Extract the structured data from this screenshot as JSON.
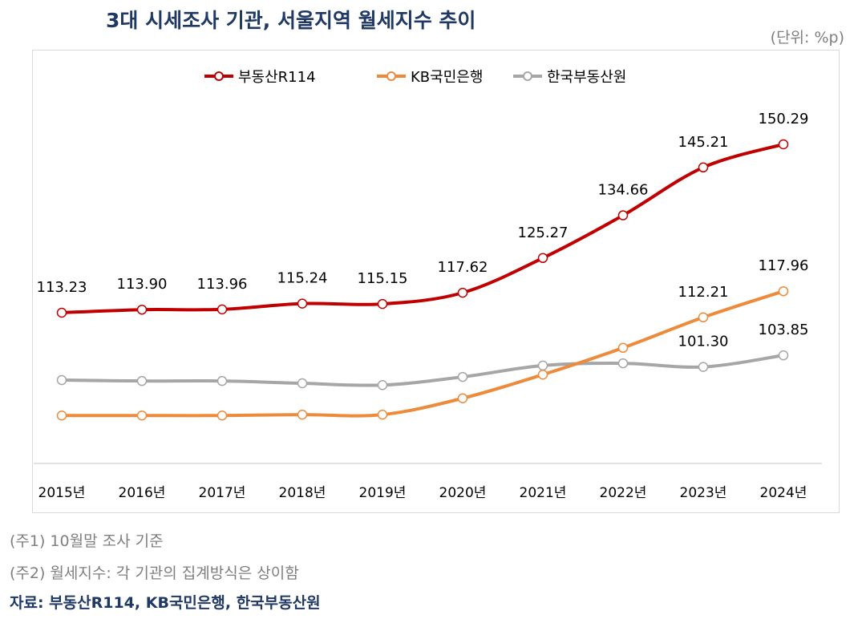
{
  "title": "3대 시세조사 기관, 서울지역 월세지수 추이",
  "unit": "(단위: %p)",
  "notes": [
    "(주1) 10월말 조사 기준",
    "(주2) 월세지수: 각 기관의 집계방식은 상이함"
  ],
  "source": "자료: 부동산R114, KB국민은행, 한국부동산원",
  "chart_data": {
    "type": "line",
    "categories": [
      "2015년",
      "2016년",
      "2017년",
      "2018년",
      "2019년",
      "2020년",
      "2021년",
      "2022년",
      "2023년",
      "2024년"
    ],
    "ylim": [
      80,
      155
    ],
    "grid": false,
    "legend": "top",
    "series": [
      {
        "name": "부동산R114",
        "color": "#c00000",
        "values": [
          113.23,
          113.9,
          113.96,
          115.24,
          115.15,
          117.62,
          125.27,
          134.66,
          145.21,
          150.29
        ],
        "labels": [
          "113.23",
          "113.90",
          "113.96",
          "115.24",
          "115.15",
          "117.62",
          "125.27",
          "134.66",
          "145.21",
          "150.29"
        ]
      },
      {
        "name": "KB국민은행",
        "color": "#ed8b3c",
        "values": [
          90.6,
          90.6,
          90.6,
          90.8,
          90.8,
          94.4,
          99.6,
          105.5,
          112.21,
          117.96
        ],
        "labels": [
          "",
          "",
          "",
          "",
          "",
          "",
          "",
          "",
          "112.21",
          "117.96"
        ]
      },
      {
        "name": "한국부동산원",
        "color": "#a6a6a6",
        "values": [
          98.4,
          98.2,
          98.2,
          97.7,
          97.3,
          99.1,
          101.6,
          102.1,
          101.3,
          103.85
        ],
        "labels": [
          "",
          "",
          "",
          "",
          "",
          "",
          "",
          "",
          "101.30",
          "103.85"
        ]
      }
    ]
  }
}
